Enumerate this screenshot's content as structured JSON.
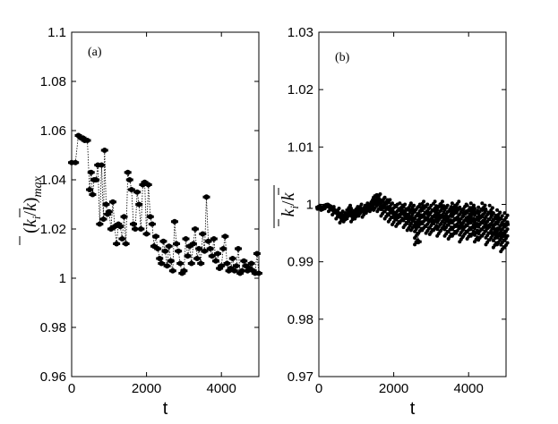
{
  "chart_data": [
    {
      "type": "scatter",
      "panel_label": "(a)",
      "title": "",
      "xlabel": "t",
      "ylabel": "(k̄_i/k̄)_max",
      "xlim": [
        0,
        5000
      ],
      "ylim": [
        0.96,
        1.1
      ],
      "xticks": [
        0,
        2000,
        4000
      ],
      "xtick_labels": [
        "0",
        "2000",
        "4000"
      ],
      "yticks": [
        0.96,
        0.98,
        1.0,
        1.02,
        1.04,
        1.06,
        1.08,
        1.1
      ],
      "ytick_labels": [
        "0.96",
        "0.98",
        "1",
        "1.02",
        "1.04",
        "1.06",
        "1.08",
        "1.1"
      ],
      "grid": false,
      "connector": "dotted",
      "series": [
        {
          "x": [
            0,
            100,
            180,
            250,
            300,
            350,
            420,
            480,
            520,
            560,
            600,
            650,
            700,
            750,
            800,
            850,
            880,
            920,
            960,
            1000,
            1050,
            1100,
            1150,
            1200,
            1250,
            1300,
            1350,
            1400,
            1450,
            1500,
            1550,
            1600,
            1650,
            1700,
            1750,
            1800,
            1850,
            1900,
            1950,
            2000,
            2050,
            2100,
            2150,
            2200,
            2250,
            2300,
            2350,
            2400,
            2450,
            2500,
            2550,
            2600,
            2650,
            2700,
            2750,
            2800,
            2850,
            2900,
            2950,
            3000,
            3050,
            3100,
            3150,
            3200,
            3250,
            3300,
            3350,
            3400,
            3450,
            3500,
            3550,
            3600,
            3650,
            3700,
            3750,
            3800,
            3850,
            3900,
            3950,
            4000,
            4050,
            4100,
            4150,
            4200,
            4250,
            4300,
            4350,
            4400,
            4450,
            4500,
            4550,
            4600,
            4650,
            4700,
            4750,
            4800,
            4850,
            4900,
            4950,
            5000
          ],
          "y": [
            1.047,
            1.047,
            1.058,
            1.057,
            1.057,
            1.056,
            1.056,
            1.036,
            1.043,
            1.034,
            1.04,
            1.04,
            1.046,
            1.022,
            1.046,
            1.024,
            1.052,
            1.03,
            1.026,
            1.027,
            1.02,
            1.031,
            1.021,
            1.014,
            1.022,
            1.021,
            1.016,
            1.025,
            1.014,
            1.043,
            1.04,
            1.036,
            1.022,
            1.02,
            1.035,
            1.03,
            1.02,
            1.038,
            1.039,
            1.018,
            1.038,
            1.025,
            1.022,
            1.013,
            1.017,
            1.012,
            1.008,
            1.006,
            1.015,
            1.011,
            1.005,
            1.013,
            1.007,
            1.003,
            1.023,
            1.014,
            1.011,
            1.006,
            1.002,
            1.003,
            1.016,
            1.009,
            1.013,
            1.006,
            1.014,
            1.02,
            1.008,
            1.012,
            1.006,
            1.018,
            1.011,
            1.033,
            1.015,
            1.012,
            1.009,
            1.016,
            1.007,
            1.01,
            1.004,
            1.005,
            1.012,
            1.017,
            1.006,
            1.003,
            1.004,
            1.008,
            1.003,
            1.005,
            1.012,
            1.002,
            1.003,
            1.007,
            1.005,
            1.003,
            1.004,
            1.006,
            1.003,
            1.002,
            1.01,
            1.002
          ]
        }
      ]
    },
    {
      "type": "scatter",
      "panel_label": "(b)",
      "title": "",
      "xlabel": "t",
      "ylabel": "k̄_i/k̄ (overlined)",
      "xlim": [
        0,
        5000
      ],
      "ylim": [
        0.97,
        1.03
      ],
      "xticks": [
        0,
        2000,
        4000
      ],
      "xtick_labels": [
        "0",
        "2000",
        "4000"
      ],
      "yticks": [
        0.97,
        0.98,
        0.99,
        1.0,
        1.01,
        1.02,
        1.03
      ],
      "ytick_labels": [
        "0.97",
        "0.98",
        "0.99",
        "1",
        "1.01",
        "1.02",
        "1.03"
      ],
      "grid": false,
      "connector": "dotted",
      "series": [
        {
          "x": [
            0,
            100,
            200,
            300,
            400,
            500,
            600,
            700,
            800,
            900,
            1000,
            1100,
            1200,
            1300,
            1400,
            1500,
            1550,
            1600,
            1700,
            1800,
            1900,
            2000,
            2100,
            2200,
            2300,
            2400,
            2500,
            2600,
            2650,
            2700,
            2800,
            2900,
            3000,
            3100,
            3200,
            3300,
            3400,
            3500,
            3600,
            3700,
            3800,
            3900,
            4000,
            4100,
            4200,
            4300,
            4400,
            4500,
            4600,
            4700,
            4800,
            4900,
            5000
          ],
          "y": [
            0.9995,
            0.9993,
            0.9998,
            0.9996,
            0.999,
            0.9985,
            0.9978,
            0.9975,
            0.999,
            0.998,
            0.9985,
            0.9992,
            0.9988,
            0.9995,
            1.0,
            1.0005,
            1.0015,
            1.0008,
            0.9995,
            1.0003,
            0.9992,
            0.9985,
            0.9978,
            0.999,
            0.9983,
            0.9975,
            0.999,
            0.9962,
            0.9935,
            0.998,
            0.9995,
            0.9985,
            0.9972,
            0.999,
            0.998,
            0.9996,
            0.9978,
            0.997,
            0.9988,
            0.9992,
            0.9962,
            0.9985,
            0.9975,
            0.9988,
            0.9965,
            0.9978,
            0.9992,
            0.996,
            0.9985,
            0.995,
            0.9975,
            0.9945,
            0.9965
          ],
          "band": {
            "x": [
              0,
              100,
              200,
              300,
              400,
              500,
              600,
              700,
              800,
              900,
              1000,
              1100,
              1200,
              1300,
              1400,
              1500,
              1600,
              1700,
              1800,
              1900,
              2000,
              2100,
              2200,
              2300,
              2400,
              2500,
              2600,
              2700,
              2800,
              2900,
              3000,
              3100,
              3200,
              3300,
              3400,
              3500,
              3600,
              3700,
              3800,
              3900,
              4000,
              4100,
              4200,
              4300,
              4400,
              4500,
              4600,
              4700,
              4800,
              4900,
              5000
            ],
            "low": [
              0.9992,
              0.999,
              0.9993,
              0.9988,
              0.9982,
              0.9975,
              0.9968,
              0.997,
              0.9978,
              0.997,
              0.9975,
              0.998,
              0.9978,
              0.9985,
              0.9988,
              0.999,
              0.9988,
              0.998,
              0.9975,
              0.997,
              0.9965,
              0.9962,
              0.9968,
              0.996,
              0.9955,
              0.9955,
              0.993,
              0.995,
              0.9955,
              0.995,
              0.9948,
              0.9955,
              0.9945,
              0.9955,
              0.9945,
              0.994,
              0.9945,
              0.995,
              0.9935,
              0.9945,
              0.994,
              0.9945,
              0.9935,
              0.9938,
              0.9945,
              0.993,
              0.9938,
              0.9925,
              0.993,
              0.9918,
              0.9925
            ],
            "high": [
              0.9998,
              0.9998,
              1.0,
              0.9999,
              0.9996,
              0.9993,
              0.9988,
              0.9985,
              0.9998,
              0.9993,
              0.9996,
              1.0,
              0.9998,
              1.0002,
              1.0008,
              1.0012,
              1.0018,
              1.001,
              1.0012,
              1.0008,
              1.0002,
              1.0,
              1.0002,
              1.0,
              0.9998,
              1.0002,
              0.9995,
              1.0,
              1.0005,
              1.0,
              0.9998,
              1.0005,
              1.0,
              1.0005,
              0.9998,
              0.9996,
              1.0002,
              1.0005,
              0.9995,
              1.0,
              0.9998,
              1.0002,
              0.9993,
              0.9995,
              1.0002,
              0.999,
              0.9998,
              0.9985,
              0.999,
              0.998,
              0.9985
            ]
          }
        }
      ]
    }
  ]
}
